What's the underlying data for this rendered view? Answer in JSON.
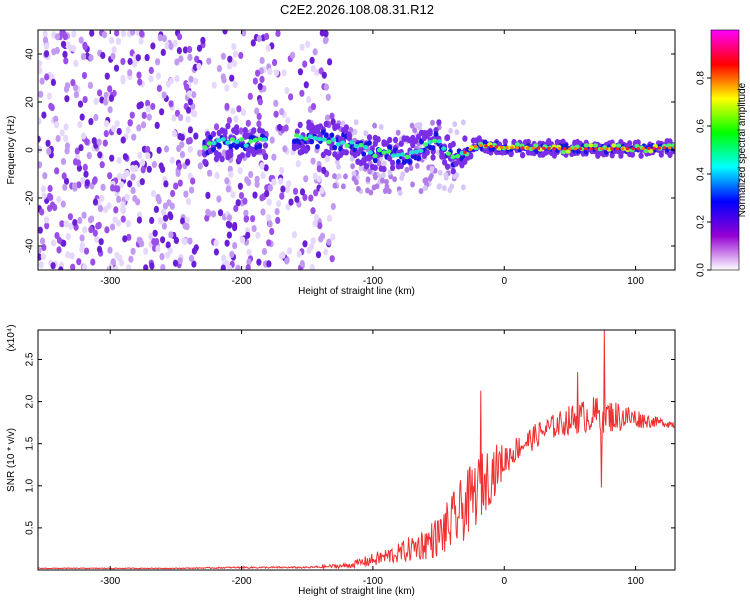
{
  "chart_data": [
    {
      "type": "heatmap",
      "title": "C2E2.2026.108.08.31.R12",
      "xlabel": "Height of straight line (km)",
      "ylabel": "Frequency (Hz)",
      "xlim": [
        -355,
        130
      ],
      "ylim": [
        -50,
        50
      ],
      "xticks": [
        -300,
        -200,
        -100,
        0,
        100
      ],
      "yticks": [
        -40,
        -20,
        0,
        20,
        40
      ],
      "colorbar": {
        "label": "Normalized spectral amplitude",
        "range": [
          0.0,
          1.0
        ],
        "ticks": [
          "0.0",
          "0.2",
          "0.4",
          "0.6",
          "0.8"
        ],
        "colormap": [
          "#ffffff",
          "#9400d3",
          "#0000ff",
          "#00ffff",
          "#00ff00",
          "#ffff00",
          "#ff0000",
          "#ff00ff"
        ]
      },
      "ridge": [
        {
          "x": -225,
          "freq": 3
        },
        {
          "x": -200,
          "freq": 3
        },
        {
          "x": -150,
          "freq": 5
        },
        {
          "x": -120,
          "freq": 3
        },
        {
          "x": -100,
          "freq": -1
        },
        {
          "x": -70,
          "freq": -2
        },
        {
          "x": -50,
          "freq": 5
        },
        {
          "x": -40,
          "freq": -4
        },
        {
          "x": -20,
          "freq": 2
        },
        {
          "x": 0,
          "freq": 1
        },
        {
          "x": 50,
          "freq": 0.5
        },
        {
          "x": 100,
          "freq": 0.5
        },
        {
          "x": 130,
          "freq": 1
        }
      ],
      "noise_extent_x": [
        -355,
        -130
      ]
    },
    {
      "type": "line",
      "title": "",
      "xlabel": "Height of straight line (km)",
      "ylabel": "SNR (10 * v/v)",
      "y_multiplier": "(x10⁴)",
      "xlim": [
        -355,
        130
      ],
      "ylim": [
        0,
        2.85
      ],
      "xticks": [
        -300,
        -200,
        -100,
        0,
        100
      ],
      "yticks": [
        0.5,
        1.0,
        1.5,
        2.0,
        2.5
      ],
      "color": "#f03030",
      "series": [
        {
          "x": [
            -355,
            -300,
            -250,
            -200,
            -150,
            -120,
            -100,
            -80,
            -60,
            -50,
            -40,
            -30,
            -20,
            -10,
            0,
            10,
            20,
            30,
            40,
            50,
            60,
            70,
            80,
            90,
            100,
            110,
            120,
            130
          ],
          "y": [
            0.02,
            0.02,
            0.02,
            0.03,
            0.03,
            0.05,
            0.12,
            0.2,
            0.32,
            0.4,
            0.55,
            0.75,
            0.95,
            1.15,
            1.3,
            1.45,
            1.55,
            1.65,
            1.72,
            1.78,
            1.82,
            1.85,
            1.83,
            1.82,
            1.8,
            1.77,
            1.75,
            1.73
          ],
          "noise": [
            0.005,
            0.005,
            0.005,
            0.01,
            0.01,
            0.03,
            0.08,
            0.12,
            0.2,
            0.25,
            0.35,
            0.4,
            0.4,
            0.35,
            0.2,
            0.15,
            0.15,
            0.15,
            0.15,
            0.18,
            0.2,
            0.22,
            0.2,
            0.18,
            0.12,
            0.08,
            0.05,
            0.05
          ]
        }
      ],
      "peaks": [
        {
          "x": -18,
          "y": 2.13
        },
        {
          "x": 56,
          "y": 2.35
        },
        {
          "x": 76,
          "y": 2.85
        },
        {
          "x": 74,
          "y": 0.98
        }
      ]
    }
  ]
}
